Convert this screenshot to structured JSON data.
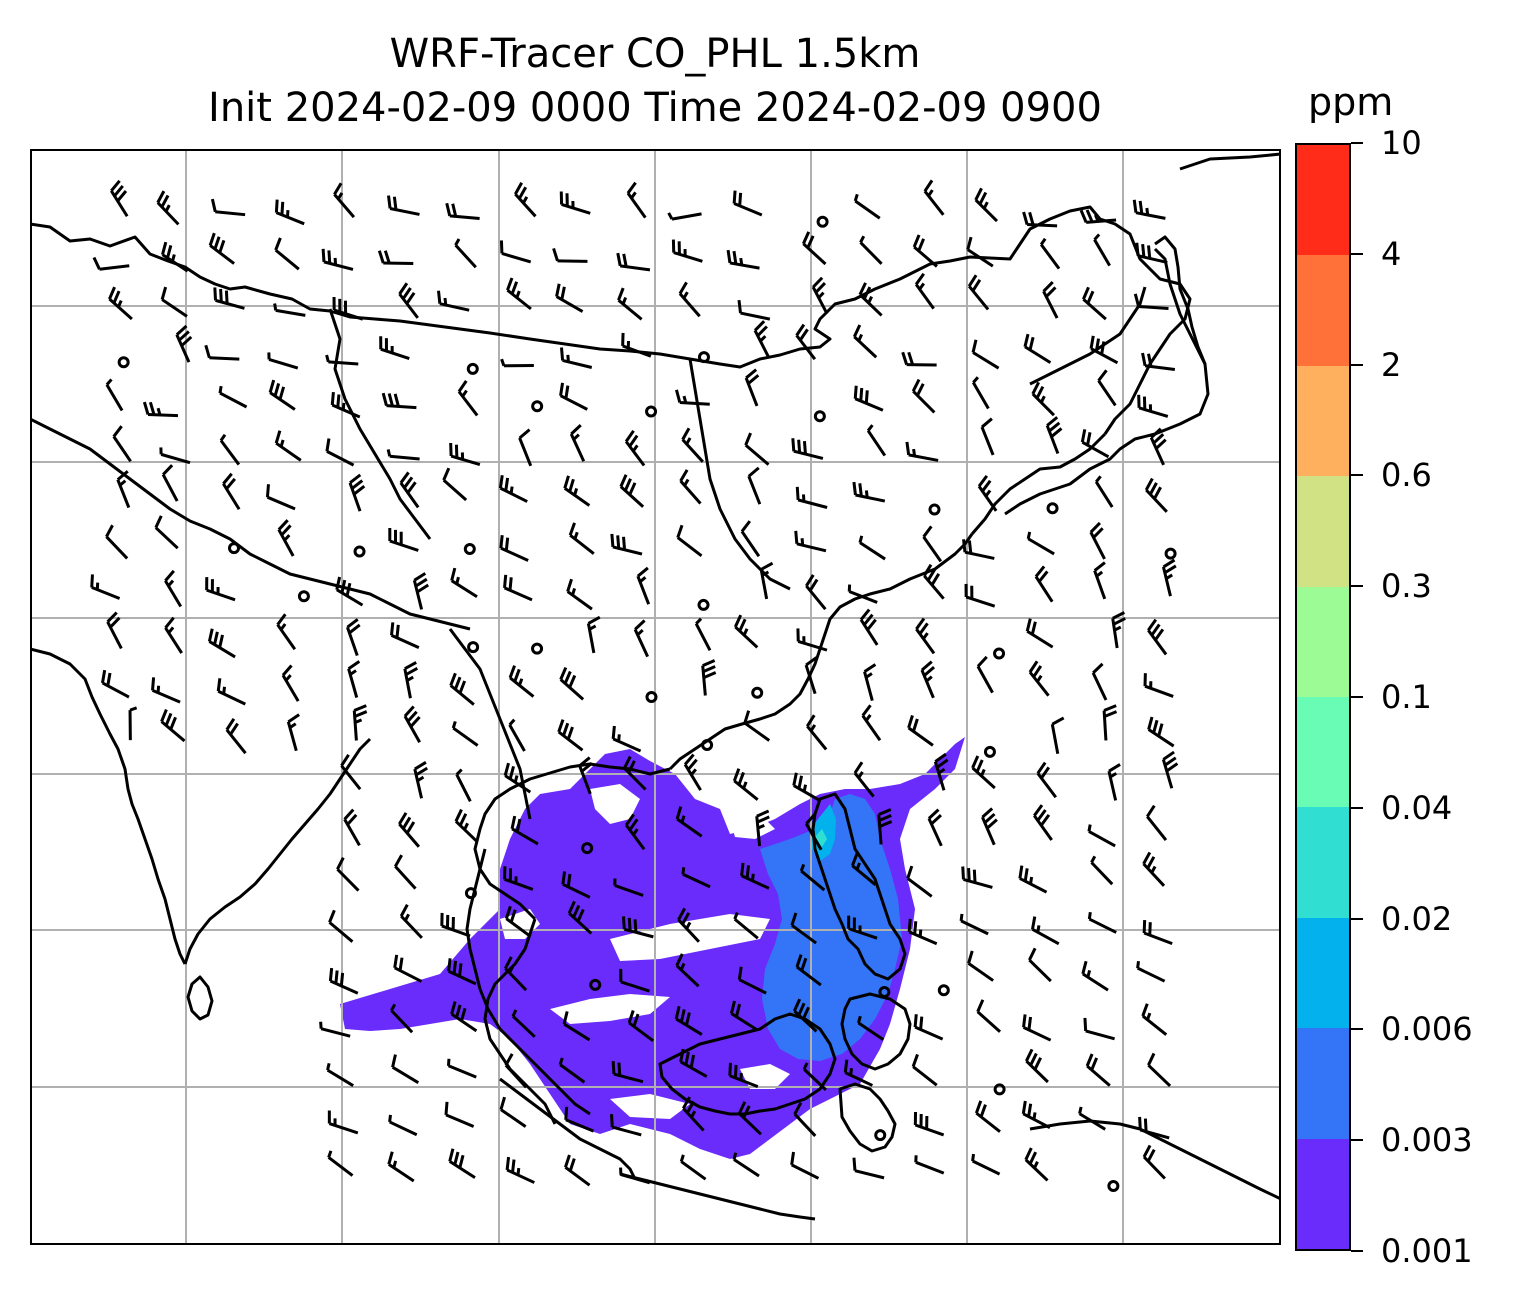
{
  "title": {
    "line1": "WRF-Tracer CO_PHL 1.5km",
    "line2": "Init 2024-02-09 0000 Time 2024-02-09 0900"
  },
  "colorbar": {
    "unit": "ppm",
    "levels": [
      "0.001",
      "0.003",
      "0.006",
      "0.02",
      "0.04",
      "0.1",
      "0.3",
      "0.6",
      "2",
      "4",
      "10"
    ],
    "colors": [
      "#6a2cfb",
      "#3375f6",
      "#03b1ec",
      "#31dfd2",
      "#68fcb5",
      "#9dfb95",
      "#d0e283",
      "#ffb05f",
      "#ff7138",
      "#ff2c1a"
    ]
  },
  "map": {
    "grid": true,
    "field": "CO_PHL tracer concentration",
    "overlay": "wind barbs and calm circles",
    "style": {
      "coast": "#000000",
      "grid": "#b0b0b0"
    }
  }
}
